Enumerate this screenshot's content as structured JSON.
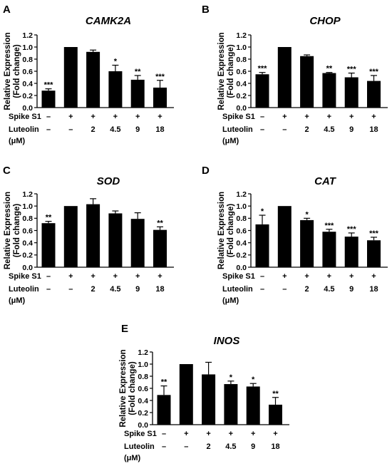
{
  "conditions": {
    "row1_label": "Spike S1",
    "row2_label": "Luteolin",
    "row2_unit": "(μM)",
    "spike": [
      "–",
      "+",
      "+",
      "+",
      "+",
      "+"
    ],
    "luteolin": [
      "–",
      "–",
      "2",
      "4.5",
      "9",
      "18"
    ]
  },
  "chart_data": [
    {
      "type": "bar",
      "panel": "A",
      "title": "CAMK2A",
      "ylabel": [
        "Relative Expression",
        "(Fold change)"
      ],
      "ylim": [
        0,
        1.2
      ],
      "yticks": [
        "0.0",
        "0.2",
        "0.4",
        "0.6",
        "0.8",
        "1.0",
        "1.2"
      ],
      "values": [
        0.28,
        1.0,
        0.92,
        0.6,
        0.46,
        0.33
      ],
      "errors": [
        0.03,
        0.0,
        0.03,
        0.1,
        0.07,
        0.12
      ],
      "significance": [
        "***",
        "",
        "",
        "*",
        "**",
        "***"
      ]
    },
    {
      "type": "bar",
      "panel": "B",
      "title": "CHOP",
      "ylabel": [
        "Relative Expression",
        "(Fold change)"
      ],
      "ylim": [
        0,
        1.2
      ],
      "yticks": [
        "0.0",
        "0.2",
        "0.4",
        "0.6",
        "0.8",
        "1.0",
        "1.2"
      ],
      "values": [
        0.55,
        1.0,
        0.85,
        0.57,
        0.5,
        0.44
      ],
      "errors": [
        0.03,
        0.0,
        0.02,
        0.01,
        0.07,
        0.09
      ],
      "significance": [
        "***",
        "",
        "",
        "**",
        "***",
        "***"
      ]
    },
    {
      "type": "bar",
      "panel": "C",
      "title": "SOD",
      "ylabel": [
        "Relative Expression",
        "(Fold change)"
      ],
      "ylim": [
        0,
        1.2
      ],
      "yticks": [
        "0.0",
        "0.2",
        "0.4",
        "0.6",
        "0.8",
        "1.0",
        "1.2"
      ],
      "values": [
        0.72,
        1.0,
        1.03,
        0.88,
        0.79,
        0.61
      ],
      "errors": [
        0.03,
        0.0,
        0.09,
        0.04,
        0.1,
        0.05
      ],
      "significance": [
        "**",
        "",
        "",
        "",
        "",
        "**"
      ]
    },
    {
      "type": "bar",
      "panel": "D",
      "title": "CAT",
      "ylabel": [
        "Relative Expression",
        "(Fold change)"
      ],
      "ylim": [
        0,
        1.2
      ],
      "yticks": [
        "0.0",
        "0.2",
        "0.4",
        "0.6",
        "0.8",
        "1.0",
        "1.2"
      ],
      "values": [
        0.7,
        1.0,
        0.77,
        0.58,
        0.5,
        0.44
      ],
      "errors": [
        0.15,
        0.0,
        0.03,
        0.04,
        0.06,
        0.05
      ],
      "significance": [
        "*",
        "",
        "*",
        "***",
        "***",
        "***"
      ]
    },
    {
      "type": "bar",
      "panel": "E",
      "title": "INOS",
      "ylabel": [
        "Relative Expression",
        "(Fold change)"
      ],
      "ylim": [
        0,
        1.2
      ],
      "yticks": [
        "0.0",
        "0.2",
        "0.4",
        "0.6",
        "0.8",
        "1.0",
        "1.2"
      ],
      "values": [
        0.49,
        1.0,
        0.83,
        0.67,
        0.63,
        0.33
      ],
      "errors": [
        0.15,
        0.0,
        0.2,
        0.05,
        0.05,
        0.12
      ],
      "significance": [
        "**",
        "",
        "",
        "*",
        "*",
        "**"
      ]
    }
  ]
}
